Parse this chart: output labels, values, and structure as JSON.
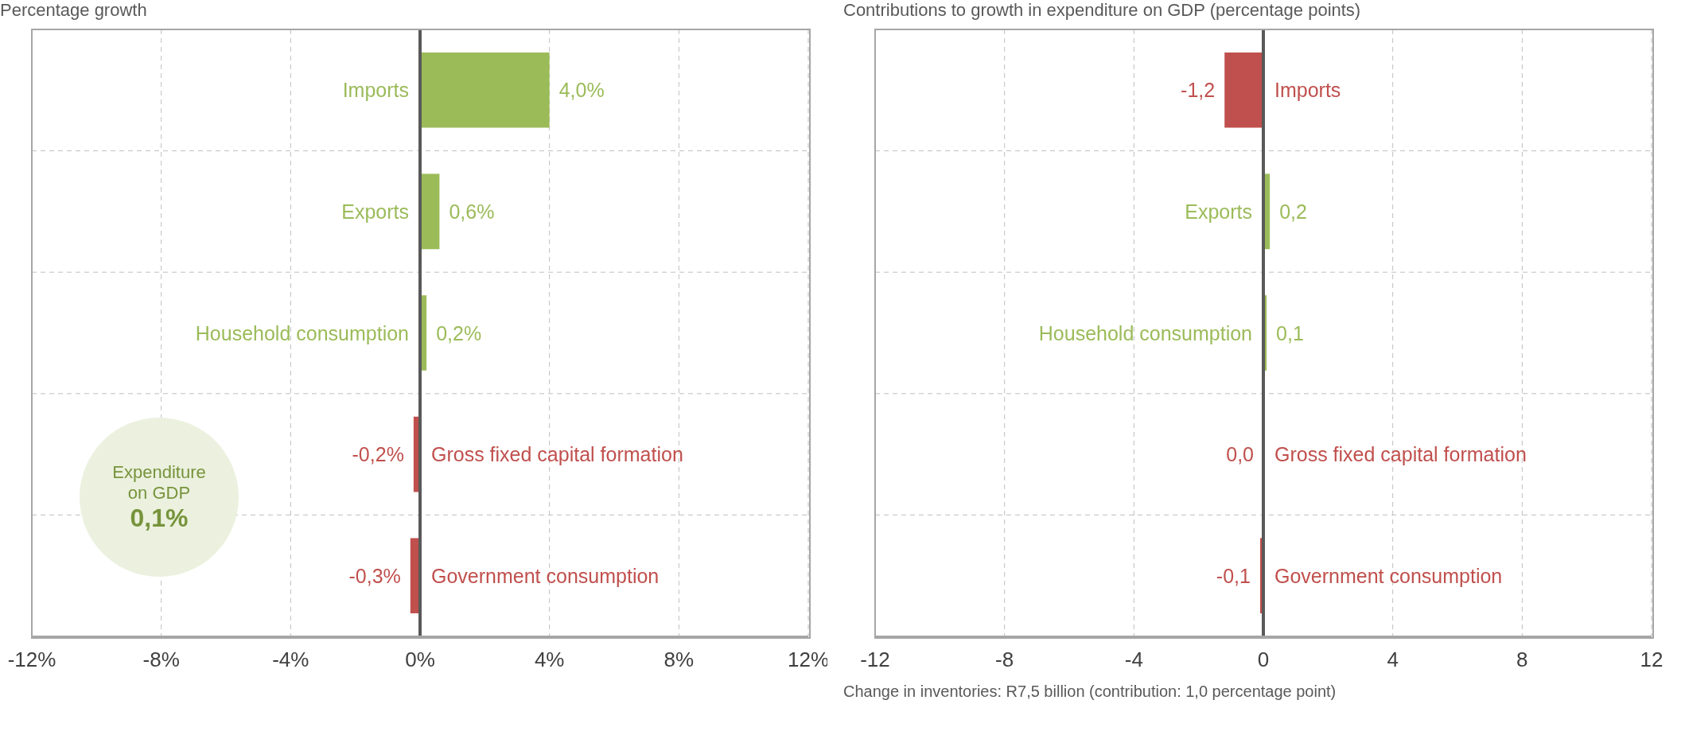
{
  "chart_data": [
    {
      "type": "bar",
      "orientation": "horizontal",
      "title": "Percentage growth",
      "categories": [
        "Imports",
        "Exports",
        "Household consumption",
        "Gross fixed capital formation",
        "Government consumption"
      ],
      "values": [
        4.0,
        0.6,
        0.2,
        -0.2,
        -0.3
      ],
      "colors": [
        "#9bbb59",
        "#9bbb59",
        "#9bbb59",
        "#c0504d",
        "#c0504d"
      ],
      "value_labels": [
        "4,0%",
        "0,6%",
        "0,2%",
        "-0,2%",
        "-0,3%"
      ],
      "xlim": [
        -12,
        12
      ],
      "xticks": [
        {
          "value": -12,
          "label": "-12%"
        },
        {
          "value": -8,
          "label": "-8%"
        },
        {
          "value": -4,
          "label": "-4%"
        },
        {
          "value": 0,
          "label": "0%"
        },
        {
          "value": 4,
          "label": "4%"
        },
        {
          "value": 8,
          "label": "8%"
        },
        {
          "value": 12,
          "label": "12%"
        }
      ],
      "grid": true,
      "tick_labels": "x",
      "ref_lines": [
        {
          "axis": "x",
          "value": 0,
          "color": "#595959"
        }
      ],
      "annotations": [
        "Expenditure on GDP",
        "0,1%"
      ]
    },
    {
      "type": "bar",
      "orientation": "horizontal",
      "title": "Contributions to growth in expenditure on GDP (percentage points)",
      "categories": [
        "Imports",
        "Exports",
        "Household consumption",
        "Gross fixed capital formation",
        "Government consumption"
      ],
      "values": [
        -1.2,
        0.2,
        0.1,
        0.0,
        -0.1
      ],
      "colors": [
        "#c0504d",
        "#9bbb59",
        "#9bbb59",
        "#c0504d",
        "#c0504d"
      ],
      "value_labels": [
        "-1,2",
        "0,2",
        "0,1",
        "0,0",
        "-0,1"
      ],
      "xlim": [
        -12,
        12
      ],
      "xticks": [
        -12,
        -8,
        -4,
        0,
        4,
        8,
        12
      ],
      "grid": true,
      "tick_labels": "x",
      "ref_lines": [
        {
          "axis": "x",
          "value": 0,
          "color": "#595959"
        }
      ],
      "annotations": [
        "Change in inventories: R7,5 billion (contribution: 1,0 percentage point)"
      ]
    }
  ]
}
